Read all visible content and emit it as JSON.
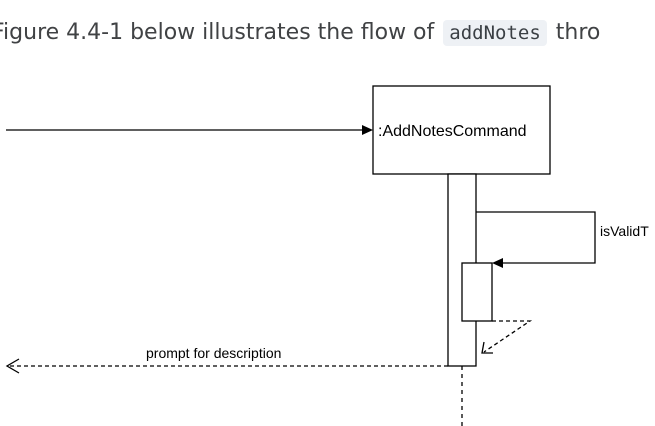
{
  "caption": {
    "before": "Figure 4.4-1 below illustrates the flow of",
    "code": "addNotes",
    "after": "thro"
  },
  "diagram": {
    "participant": ":AddNotesCommand",
    "self_call_label": "isValidT",
    "return_label": "prompt for description"
  },
  "colors": {
    "caption_text": "#404244",
    "code_background": "#eef1f5",
    "line": "#000000"
  }
}
